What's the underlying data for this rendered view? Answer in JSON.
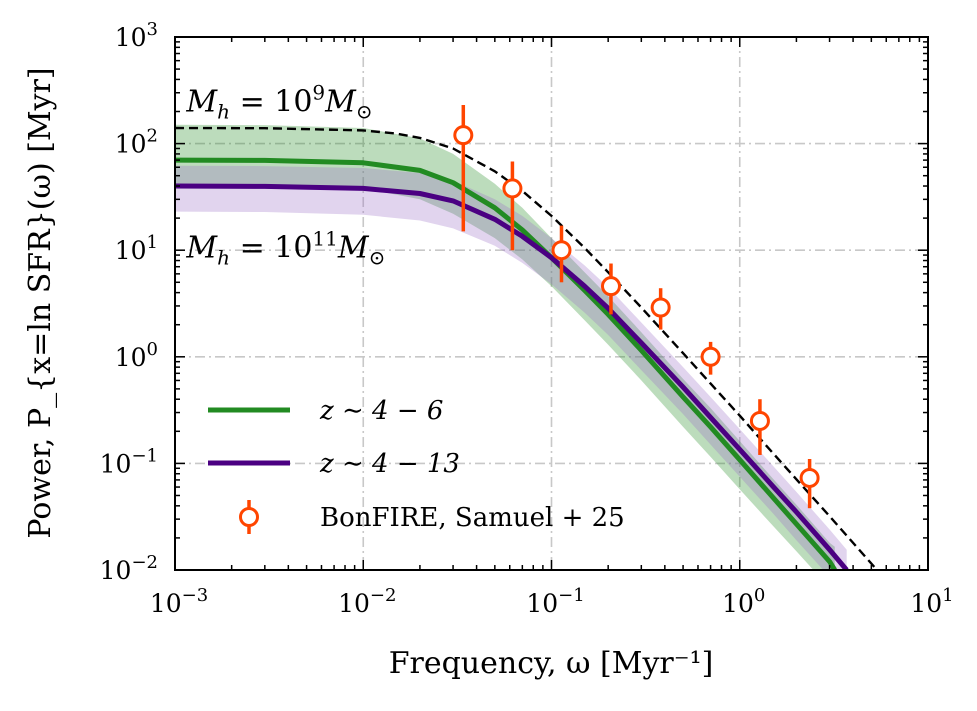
{
  "chart_data": {
    "type": "line",
    "title": "",
    "xlabel": "Frequency, ω [Myr⁻¹]",
    "ylabel": "Power, P_{x=ln SFR}(ω) [Myr]",
    "x_scale": "log",
    "y_scale": "log",
    "xlim": [
      0.001,
      10
    ],
    "ylim": [
      0.01,
      1000
    ],
    "grid": true,
    "legend_position": "bottom-left",
    "x_ticks": [
      {
        "value": 0.001,
        "base": "10",
        "exp": "−3"
      },
      {
        "value": 0.01,
        "base": "10",
        "exp": "−2"
      },
      {
        "value": 0.1,
        "base": "10",
        "exp": "−1"
      },
      {
        "value": 1,
        "base": "10",
        "exp": "0"
      },
      {
        "value": 10,
        "base": "10",
        "exp": "1"
      }
    ],
    "y_ticks": [
      {
        "value": 0.01,
        "base": "10",
        "exp": "−2"
      },
      {
        "value": 0.1,
        "base": "10",
        "exp": "−1"
      },
      {
        "value": 1,
        "base": "10",
        "exp": "0"
      },
      {
        "value": 10,
        "base": "10",
        "exp": "1"
      },
      {
        "value": 100,
        "base": "10",
        "exp": "2"
      },
      {
        "value": 1000,
        "base": "10",
        "exp": "3"
      }
    ],
    "annotations": [
      {
        "text_main": "M",
        "sub": "h",
        "eq": " = 10",
        "sup": "9",
        "tail": "M",
        "tail_sub": "⊙",
        "x": 0.00115,
        "y": 200
      },
      {
        "text_main": "M",
        "sub": "h",
        "eq": " = 10",
        "sup": "11",
        "tail": "M",
        "tail_sub": "⊙",
        "x": 0.00115,
        "y": 8.5
      }
    ],
    "series": [
      {
        "name": "z ∼ 4 − 6",
        "color": "#228b22",
        "band_color": "#228b22",
        "style": "solid",
        "x": [
          0.001,
          0.003,
          0.01,
          0.02,
          0.03,
          0.05,
          0.07,
          0.1,
          0.15,
          0.2,
          0.3,
          0.5,
          0.7,
          1,
          1.5,
          2,
          3,
          3.2
        ],
        "y": [
          70,
          69.5,
          66,
          56,
          43,
          25,
          15.5,
          8.5,
          4.2,
          2.5,
          1.15,
          0.42,
          0.22,
          0.108,
          0.048,
          0.027,
          0.012,
          0.01
        ],
        "band_low": [
          42,
          41.5,
          38,
          30,
          22,
          13,
          8.2,
          4.6,
          2.2,
          1.3,
          0.6,
          0.22,
          0.115,
          0.057,
          0.026,
          0.015,
          0.0068,
          0.006
        ],
        "band_high": [
          150,
          149,
          140,
          112,
          80,
          42,
          25,
          13,
          6.2,
          3.7,
          1.7,
          0.62,
          0.33,
          0.162,
          0.072,
          0.041,
          0.018,
          0.0165
        ]
      },
      {
        "name": "z ∼ 4 − 13",
        "color": "#4b0082",
        "band_color": "#9b6fc6",
        "style": "solid",
        "x": [
          0.001,
          0.003,
          0.01,
          0.02,
          0.03,
          0.05,
          0.07,
          0.1,
          0.15,
          0.2,
          0.3,
          0.5,
          0.7,
          1,
          1.5,
          2,
          3,
          3.7
        ],
        "y": [
          40,
          39.7,
          38,
          34,
          29,
          19.5,
          13.5,
          8.5,
          4.6,
          2.85,
          1.35,
          0.52,
          0.27,
          0.135,
          0.061,
          0.035,
          0.0155,
          0.01
        ],
        "band_low": [
          23,
          22.8,
          21.5,
          19,
          16,
          11,
          7.6,
          4.8,
          2.6,
          1.6,
          0.75,
          0.29,
          0.15,
          0.075,
          0.034,
          0.019,
          0.0086,
          0.0055
        ],
        "band_high": [
          62,
          61.5,
          59,
          53,
          45,
          30,
          21,
          13,
          7.2,
          4.5,
          2.1,
          0.8,
          0.42,
          0.21,
          0.095,
          0.054,
          0.024,
          0.0155
        ]
      },
      {
        "name": "",
        "color": "#000000",
        "style": "dashed",
        "x": [
          0.001,
          0.003,
          0.01,
          0.015,
          0.02,
          0.03,
          0.05,
          0.07,
          0.1,
          0.15,
          0.2,
          0.3,
          0.5,
          0.7,
          1,
          1.5,
          2,
          3,
          5,
          5.5
        ],
        "y": [
          140,
          139.5,
          133,
          124,
          113,
          90,
          55,
          36,
          21,
          10.5,
          6.2,
          2.9,
          1.08,
          0.56,
          0.28,
          0.125,
          0.071,
          0.032,
          0.0115,
          0.0095
        ]
      }
    ],
    "data_points": {
      "name": "BonFIRE, Samuel + 25",
      "color": "#ff4500",
      "x": [
        0.034,
        0.062,
        0.113,
        0.207,
        0.38,
        0.7,
        1.28,
        2.35
      ],
      "y": [
        120,
        38,
        10,
        4.6,
        2.9,
        1.0,
        0.25,
        0.073
      ],
      "y_low": [
        15,
        10,
        5,
        2.5,
        1.8,
        0.68,
        0.12,
        0.038
      ],
      "y_high": [
        230,
        68,
        17,
        7.5,
        4.4,
        1.38,
        0.4,
        0.11
      ]
    },
    "legend": [
      {
        "label_math": "z ∼ 4 − 6",
        "color": "#228b22",
        "kind": "line"
      },
      {
        "label_math": "z ∼ 4 − 13",
        "color": "#4b0082",
        "kind": "line"
      },
      {
        "label_math": "BonFIRE, Samuel + 25",
        "color": "#ff4500",
        "kind": "marker"
      }
    ]
  }
}
